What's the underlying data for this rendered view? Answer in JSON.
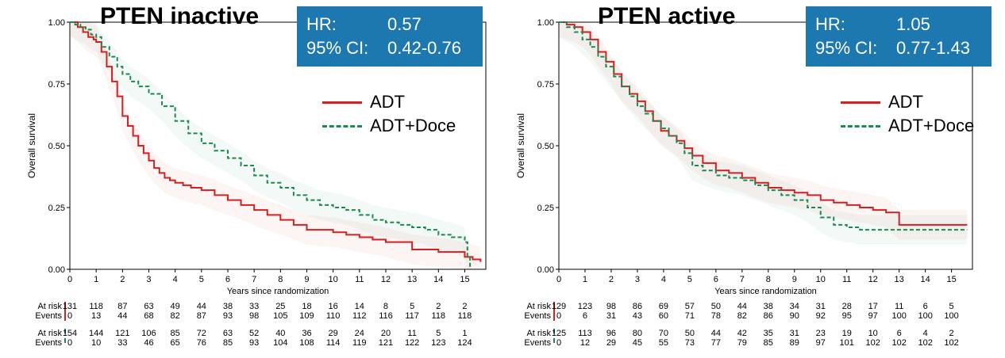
{
  "colors": {
    "adt": "#d42020",
    "doce": "#1a8a50",
    "hrbox": "#1d78b0"
  },
  "legend": {
    "adt": "ADT",
    "doce": "ADT+Doce"
  },
  "axis": {
    "xlabel": "Years since randomization",
    "ylabel": "Overall survival",
    "yticks": [
      "0.00",
      "0.25",
      "0.50",
      "0.75",
      "1.00"
    ],
    "xticks": [
      "0",
      "1",
      "2",
      "3",
      "4",
      "5",
      "6",
      "7",
      "8",
      "9",
      "10",
      "11",
      "12",
      "13",
      "14",
      "15"
    ]
  },
  "risk_labels": {
    "at_risk": "At risk",
    "events": "Events"
  },
  "panels": [
    {
      "title": "PTEN inactive",
      "hr": {
        "hr_label": "HR:",
        "hr_value": "0.57",
        "ci_label": "95% CI:",
        "ci_value": "0.42-0.76"
      },
      "risk_adt": {
        "at_risk": [
          "131",
          "118",
          "87",
          "63",
          "49",
          "44",
          "38",
          "33",
          "25",
          "18",
          "16",
          "14",
          "8",
          "5",
          "2",
          "2"
        ],
        "events": [
          "0",
          "13",
          "44",
          "68",
          "82",
          "87",
          "93",
          "98",
          "105",
          "109",
          "110",
          "112",
          "116",
          "117",
          "118",
          "118"
        ]
      },
      "risk_doce": {
        "at_risk": [
          "154",
          "144",
          "121",
          "106",
          "85",
          "72",
          "63",
          "52",
          "40",
          "36",
          "29",
          "24",
          "20",
          "11",
          "5",
          "1"
        ],
        "events": [
          "0",
          "10",
          "33",
          "46",
          "65",
          "76",
          "85",
          "93",
          "104",
          "108",
          "114",
          "119",
          "121",
          "122",
          "123",
          "124"
        ]
      }
    },
    {
      "title": "PTEN active",
      "hr": {
        "hr_label": "HR:",
        "hr_value": "1.05",
        "ci_label": "95% CI:",
        "ci_value": "0.77-1.43"
      },
      "risk_adt": {
        "at_risk": [
          "129",
          "123",
          "98",
          "86",
          "69",
          "57",
          "50",
          "44",
          "38",
          "34",
          "31",
          "28",
          "17",
          "11",
          "6",
          "5"
        ],
        "events": [
          "0",
          "6",
          "31",
          "43",
          "60",
          "71",
          "78",
          "82",
          "86",
          "90",
          "92",
          "95",
          "97",
          "100",
          "100",
          "100"
        ]
      },
      "risk_doce": {
        "at_risk": [
          "125",
          "113",
          "96",
          "80",
          "70",
          "50",
          "44",
          "42",
          "35",
          "31",
          "23",
          "19",
          "10",
          "6",
          "4",
          "2"
        ],
        "events": [
          "0",
          "12",
          "29",
          "45",
          "55",
          "73",
          "77",
          "79",
          "85",
          "89",
          "97",
          "101",
          "102",
          "102",
          "102",
          "102"
        ]
      }
    }
  ],
  "chart_data": [
    {
      "type": "line",
      "title": "PTEN inactive",
      "xlabel": "Years since randomization",
      "ylabel": "Overall survival",
      "xlim": [
        0,
        15.8
      ],
      "ylim": [
        0,
        1
      ],
      "series": [
        {
          "name": "ADT",
          "style": "solid",
          "x": [
            0,
            0.1,
            0.3,
            0.5,
            0.7,
            0.9,
            1.0,
            1.2,
            1.4,
            1.6,
            1.8,
            2.0,
            2.2,
            2.4,
            2.6,
            2.8,
            3.0,
            3.2,
            3.4,
            3.6,
            3.8,
            4.0,
            4.3,
            4.6,
            5.0,
            5.5,
            6.0,
            6.5,
            7.0,
            7.5,
            8.0,
            8.5,
            9.0,
            10.0,
            10.5,
            11.0,
            11.5,
            12.0,
            13.0,
            14.0,
            15.0,
            15.3,
            15.6
          ],
          "y": [
            1.0,
            1.0,
            0.98,
            0.96,
            0.94,
            0.93,
            0.92,
            0.88,
            0.82,
            0.76,
            0.7,
            0.62,
            0.58,
            0.54,
            0.5,
            0.47,
            0.44,
            0.41,
            0.39,
            0.37,
            0.36,
            0.35,
            0.34,
            0.33,
            0.32,
            0.3,
            0.28,
            0.26,
            0.24,
            0.22,
            0.2,
            0.18,
            0.16,
            0.15,
            0.14,
            0.13,
            0.12,
            0.11,
            0.08,
            0.07,
            0.05,
            0.04,
            0.03
          ]
        },
        {
          "name": "ADT+Doce",
          "style": "dashed",
          "x": [
            0,
            0.2,
            0.4,
            0.6,
            0.8,
            1.0,
            1.2,
            1.5,
            1.8,
            2.0,
            2.3,
            2.6,
            3.0,
            3.5,
            4.0,
            4.5,
            5.0,
            5.5,
            6.0,
            6.5,
            7.0,
            7.5,
            8.0,
            8.5,
            9.0,
            9.5,
            10.0,
            10.5,
            11.0,
            11.5,
            12.0,
            12.5,
            13.0,
            13.5,
            14.0,
            14.5,
            15.0,
            15.1,
            15.2
          ],
          "y": [
            1.0,
            0.99,
            0.98,
            0.97,
            0.95,
            0.94,
            0.9,
            0.86,
            0.82,
            0.79,
            0.76,
            0.74,
            0.71,
            0.66,
            0.6,
            0.55,
            0.51,
            0.48,
            0.45,
            0.42,
            0.38,
            0.35,
            0.33,
            0.3,
            0.28,
            0.26,
            0.25,
            0.24,
            0.22,
            0.2,
            0.19,
            0.18,
            0.17,
            0.16,
            0.14,
            0.13,
            0.11,
            0.05,
            0.01
          ]
        }
      ]
    },
    {
      "type": "line",
      "title": "PTEN active",
      "xlabel": "Years since randomization",
      "ylabel": "Overall survival",
      "xlim": [
        0,
        15.8
      ],
      "ylim": [
        0,
        1
      ],
      "series": [
        {
          "name": "ADT",
          "style": "solid",
          "x": [
            0,
            0.3,
            0.6,
            0.9,
            1.2,
            1.5,
            1.8,
            2.1,
            2.4,
            2.7,
            3.0,
            3.3,
            3.6,
            3.9,
            4.2,
            4.5,
            4.8,
            5.1,
            5.5,
            6.0,
            6.5,
            7.0,
            7.5,
            8.0,
            8.5,
            9.0,
            9.5,
            10.0,
            10.5,
            11.0,
            11.5,
            12.0,
            12.5,
            13.0,
            13.5,
            14.0,
            14.5,
            15.0,
            15.6
          ],
          "y": [
            1.0,
            0.99,
            0.98,
            0.96,
            0.93,
            0.88,
            0.84,
            0.79,
            0.74,
            0.71,
            0.68,
            0.64,
            0.6,
            0.56,
            0.54,
            0.52,
            0.49,
            0.46,
            0.43,
            0.4,
            0.39,
            0.37,
            0.35,
            0.33,
            0.32,
            0.31,
            0.3,
            0.28,
            0.27,
            0.26,
            0.25,
            0.24,
            0.23,
            0.18,
            0.18,
            0.18,
            0.18,
            0.18,
            0.18
          ]
        },
        {
          "name": "ADT+Doce",
          "style": "dashed",
          "x": [
            0,
            0.3,
            0.6,
            0.9,
            1.2,
            1.5,
            1.8,
            2.1,
            2.4,
            2.7,
            3.0,
            3.3,
            3.6,
            3.9,
            4.2,
            4.5,
            4.8,
            5.1,
            5.5,
            6.0,
            6.5,
            7.0,
            7.5,
            8.0,
            8.5,
            9.0,
            9.5,
            10.0,
            10.5,
            11.0,
            11.5,
            12.0,
            13.0,
            14.0,
            15.0,
            15.6
          ],
          "y": [
            1.0,
            0.98,
            0.96,
            0.93,
            0.9,
            0.86,
            0.82,
            0.78,
            0.74,
            0.7,
            0.66,
            0.63,
            0.6,
            0.57,
            0.54,
            0.51,
            0.47,
            0.42,
            0.4,
            0.38,
            0.37,
            0.36,
            0.34,
            0.32,
            0.3,
            0.28,
            0.25,
            0.21,
            0.18,
            0.17,
            0.16,
            0.16,
            0.16,
            0.16,
            0.16,
            0.16
          ]
        }
      ]
    }
  ]
}
